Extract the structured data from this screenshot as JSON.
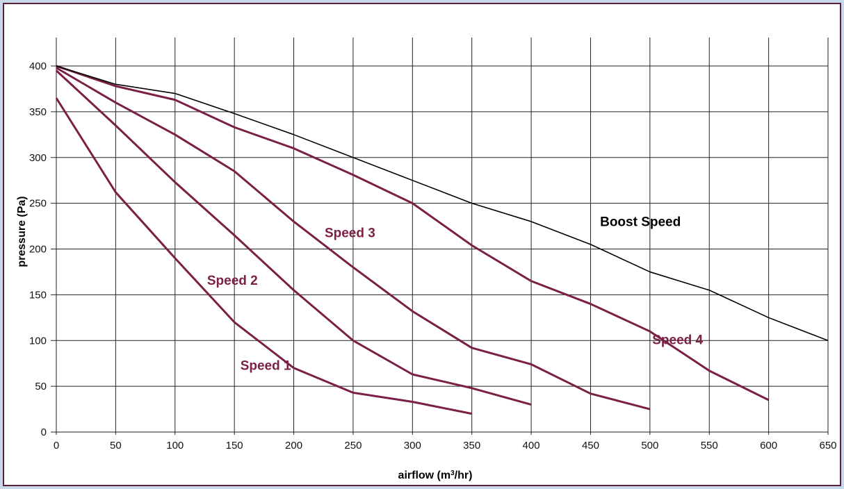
{
  "chart_data": {
    "type": "line",
    "xlabel_prefix": "airflow (m",
    "xlabel_sup": "3",
    "xlabel_suffix": "/hr)",
    "ylabel": "pressure (Pa)",
    "xlim": [
      0,
      650
    ],
    "ylim": [
      0,
      400
    ],
    "x_ticks": [
      0,
      50,
      100,
      150,
      200,
      250,
      300,
      350,
      400,
      450,
      500,
      550,
      600,
      650
    ],
    "y_ticks": [
      0,
      50,
      100,
      150,
      200,
      250,
      300,
      350,
      400
    ],
    "grid": true,
    "series": [
      {
        "name": "Speed 1",
        "color": "#7a1f45",
        "x": [
          0,
          50,
          100,
          150,
          200,
          250,
          300,
          350
        ],
        "y": [
          365,
          262,
          190,
          120,
          70,
          43,
          33,
          20
        ]
      },
      {
        "name": "Speed 2",
        "color": "#7a1f45",
        "x": [
          0,
          50,
          100,
          150,
          200,
          250,
          300,
          350,
          400
        ],
        "y": [
          395,
          335,
          273,
          215,
          155,
          100,
          63,
          48,
          30
        ]
      },
      {
        "name": "Speed 3",
        "color": "#7a1f45",
        "x": [
          0,
          50,
          100,
          150,
          200,
          250,
          300,
          350,
          400,
          450,
          500
        ],
        "y": [
          398,
          360,
          325,
          285,
          230,
          180,
          132,
          92,
          74,
          42,
          25
        ]
      },
      {
        "name": "Speed 4",
        "color": "#7a1f45",
        "x": [
          0,
          50,
          100,
          150,
          200,
          250,
          300,
          350,
          400,
          450,
          500,
          550,
          600
        ],
        "y": [
          400,
          378,
          363,
          333,
          310,
          281,
          250,
          204,
          165,
          140,
          110,
          67,
          35
        ]
      },
      {
        "name": "Boost Speed",
        "color": "#000000",
        "x": [
          0,
          50,
          100,
          150,
          200,
          250,
          300,
          350,
          400,
          450,
          500,
          550,
          600,
          650
        ],
        "y": [
          400,
          380,
          370,
          348,
          325,
          300,
          275,
          250,
          230,
          205,
          175,
          155,
          125,
          100
        ]
      }
    ],
    "annotations": [
      {
        "text": "Speed 1",
        "x": 155,
        "y": 68,
        "color": "#7a1f45"
      },
      {
        "text": "Speed 2",
        "x": 127,
        "y": 161,
        "color": "#7a1f45"
      },
      {
        "text": "Speed 3",
        "x": 226,
        "y": 213,
        "color": "#7a1f45"
      },
      {
        "text": "Speed 4",
        "x": 502,
        "y": 96,
        "color": "#7a1f45"
      },
      {
        "text": "Boost Speed",
        "x": 458,
        "y": 225,
        "color": "#000000"
      }
    ]
  }
}
